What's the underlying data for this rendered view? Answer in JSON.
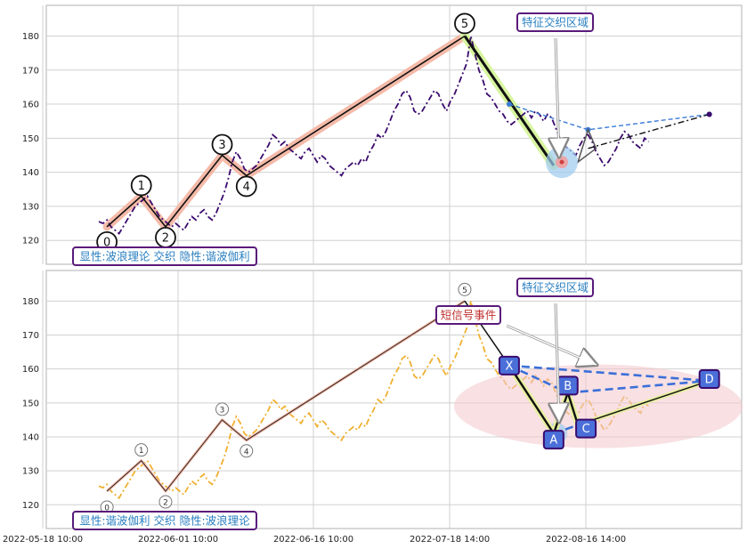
{
  "chart_data": [
    {
      "type": "line",
      "panel": "top",
      "ylim": [
        113,
        189
      ],
      "yticks": [
        120,
        130,
        140,
        150,
        160,
        170,
        180
      ],
      "xticks": [
        "2022-05-18 10:00",
        "2022-06-01 10:00",
        "2022-06-16 10:00",
        "2022-07-18 14:00",
        "2022-08-16 14:00"
      ],
      "price_series": {
        "name": "price",
        "color": "#3b0a6e",
        "x": [
          0,
          2,
          4,
          6,
          8,
          10,
          12,
          14,
          16,
          18,
          20,
          22,
          24,
          26,
          28,
          30,
          32,
          34,
          36,
          38,
          40,
          42,
          44,
          46,
          48,
          50,
          52,
          54,
          56,
          58,
          60,
          62,
          64,
          66,
          68,
          70,
          72,
          74,
          76,
          78,
          80,
          82,
          84,
          86,
          88,
          90,
          92,
          94,
          96,
          98,
          100,
          102,
          104,
          106,
          108,
          110,
          112,
          114,
          116,
          118,
          120,
          122,
          124,
          126,
          128,
          130,
          132,
          134,
          136,
          138,
          140,
          142,
          144,
          146,
          148,
          150,
          152,
          154,
          156,
          158,
          160,
          162,
          164,
          166,
          168,
          170,
          172,
          174,
          176,
          178,
          180,
          182,
          184,
          186,
          188,
          190,
          192,
          194,
          196,
          198,
          200,
          202,
          204,
          206,
          208,
          210,
          212,
          214,
          216,
          218,
          220,
          222,
          224,
          226,
          228,
          230,
          232,
          234,
          236,
          238,
          240,
          242,
          244,
          246,
          248,
          250,
          252,
          254,
          256,
          258,
          260,
          262,
          264,
          266,
          268,
          270,
          272
        ],
        "y": [
          125.5,
          125,
          126,
          124,
          123,
          122,
          124,
          126,
          128,
          130,
          131,
          132,
          133,
          131,
          129,
          127,
          126,
          125,
          124,
          125,
          124,
          123,
          125,
          127,
          126,
          128,
          129,
          127,
          126,
          128,
          131,
          134,
          138,
          143,
          146,
          144,
          141,
          140,
          141,
          142,
          144,
          146,
          148,
          151,
          150,
          148,
          149,
          147,
          146,
          145,
          144,
          146,
          147,
          145,
          143,
          145,
          144,
          142,
          141,
          140,
          139,
          141,
          142,
          143,
          142,
          144,
          143,
          146,
          148,
          151,
          150,
          152,
          155,
          158,
          160,
          163,
          164,
          162,
          158,
          157,
          158,
          160,
          162,
          164,
          163,
          160,
          158,
          161,
          163,
          166,
          169,
          172,
          180,
          175,
          170,
          167,
          163,
          162,
          160,
          158,
          157,
          155,
          154,
          155,
          156,
          157,
          158,
          156,
          158,
          157,
          155,
          157,
          156,
          153,
          150,
          148,
          147,
          146,
          145,
          148,
          150,
          151,
          149,
          146,
          144,
          142,
          143,
          145,
          147,
          150,
          152,
          151,
          149,
          148,
          147,
          150,
          149
        ]
      },
      "wave_pivots": [
        {
          "x": 4,
          "y": 124,
          "label": "0"
        },
        {
          "x": 21,
          "y": 133,
          "label": "1"
        },
        {
          "x": 33,
          "y": 124,
          "label": "2"
        },
        {
          "x": 61,
          "y": 145,
          "label": "3"
        },
        {
          "x": 73,
          "y": 139,
          "label": "4"
        },
        {
          "x": 181,
          "y": 180,
          "label": "5"
        },
        {
          "x": 225,
          "y": 142,
          "label": ""
        }
      ],
      "wave_pivot_labels": [
        "0",
        "1",
        "2",
        "3",
        "4",
        "5"
      ],
      "projection": {
        "start": [
          242,
          147
        ],
        "end": [
          302,
          157
        ]
      },
      "harmonic_dashed": {
        "points": [
          [
            203,
            160
          ],
          [
            242,
            152.5
          ],
          [
            302,
            157
          ]
        ]
      },
      "annotation_title": "特征交织区域",
      "legend_text": "显性:波浪理论 交织 隐性:谐波伽利"
    },
    {
      "type": "line",
      "panel": "bottom",
      "ylim": [
        113,
        189
      ],
      "yticks": [
        120,
        130,
        140,
        150,
        160,
        170,
        180
      ],
      "xticks": [
        "2022-05-18 10:00",
        "2022-06-01 10:00",
        "2022-06-16 10:00",
        "2022-07-18 14:00",
        "2022-08-16 14:00"
      ],
      "price_series": {
        "name": "price",
        "color": "#f0b030",
        "x": [
          0,
          2,
          4,
          6,
          8,
          10,
          12,
          14,
          16,
          18,
          20,
          22,
          24,
          26,
          28,
          30,
          32,
          34,
          36,
          38,
          40,
          42,
          44,
          46,
          48,
          50,
          52,
          54,
          56,
          58,
          60,
          62,
          64,
          66,
          68,
          70,
          72,
          74,
          76,
          78,
          80,
          82,
          84,
          86,
          88,
          90,
          92,
          94,
          96,
          98,
          100,
          102,
          104,
          106,
          108,
          110,
          112,
          114,
          116,
          118,
          120,
          122,
          124,
          126,
          128,
          130,
          132,
          134,
          136,
          138,
          140,
          142,
          144,
          146,
          148,
          150,
          152,
          154,
          156,
          158,
          160,
          162,
          164,
          166,
          168,
          170,
          172,
          174,
          176,
          178,
          180,
          182,
          184,
          186,
          188,
          190,
          192,
          194,
          196,
          198,
          200,
          202,
          204,
          206,
          208,
          210,
          212,
          214,
          216,
          218,
          220,
          222,
          224,
          226,
          228,
          230,
          232,
          234,
          236,
          238,
          240,
          242,
          244,
          246,
          248,
          250,
          252,
          254,
          256,
          258,
          260,
          262,
          264,
          266,
          268,
          270,
          272
        ],
        "y": [
          125.5,
          125,
          126,
          124,
          123,
          122,
          124,
          126,
          128,
          130,
          131,
          132,
          133,
          131,
          129,
          127,
          126,
          125,
          124,
          125,
          124,
          123,
          125,
          127,
          126,
          128,
          129,
          127,
          126,
          128,
          131,
          134,
          138,
          143,
          146,
          144,
          141,
          140,
          141,
          142,
          144,
          146,
          148,
          151,
          150,
          148,
          149,
          147,
          146,
          145,
          144,
          146,
          147,
          145,
          143,
          145,
          144,
          142,
          141,
          140,
          139,
          141,
          142,
          143,
          142,
          144,
          143,
          146,
          148,
          151,
          150,
          152,
          155,
          158,
          160,
          163,
          164,
          162,
          158,
          157,
          158,
          160,
          162,
          164,
          163,
          160,
          158,
          161,
          163,
          166,
          169,
          172,
          180,
          175,
          170,
          167,
          163,
          162,
          160,
          158,
          157,
          155,
          154,
          155,
          156,
          157,
          158,
          156,
          158,
          157,
          155,
          157,
          156,
          153,
          150,
          148,
          147,
          146,
          145,
          148,
          150,
          151,
          149,
          146,
          144,
          142,
          143,
          145,
          147,
          150,
          152,
          151,
          149,
          148,
          147,
          150,
          149
        ]
      },
      "wave_pivots": [
        {
          "x": 4,
          "y": 124,
          "label": "0"
        },
        {
          "x": 21,
          "y": 133,
          "label": "1"
        },
        {
          "x": 33,
          "y": 124,
          "label": "2"
        },
        {
          "x": 61,
          "y": 145,
          "label": "3"
        },
        {
          "x": 73,
          "y": 139,
          "label": "4"
        },
        {
          "x": 181,
          "y": 180,
          "label": "5"
        }
      ],
      "harmonic_pattern": [
        {
          "label": "X",
          "x": 203,
          "y": 161
        },
        {
          "label": "A",
          "x": 225,
          "y": 141
        },
        {
          "label": "B",
          "x": 232,
          "y": 153
        },
        {
          "label": "C",
          "x": 237,
          "y": 143.5
        },
        {
          "label": "D",
          "x": 302,
          "y": 156.5
        }
      ],
      "annotation_title": "特征交织区域",
      "signal_text": "短信号事件",
      "legend_text": "显性:谐波伽利 交织 隐性:波浪理论"
    }
  ]
}
